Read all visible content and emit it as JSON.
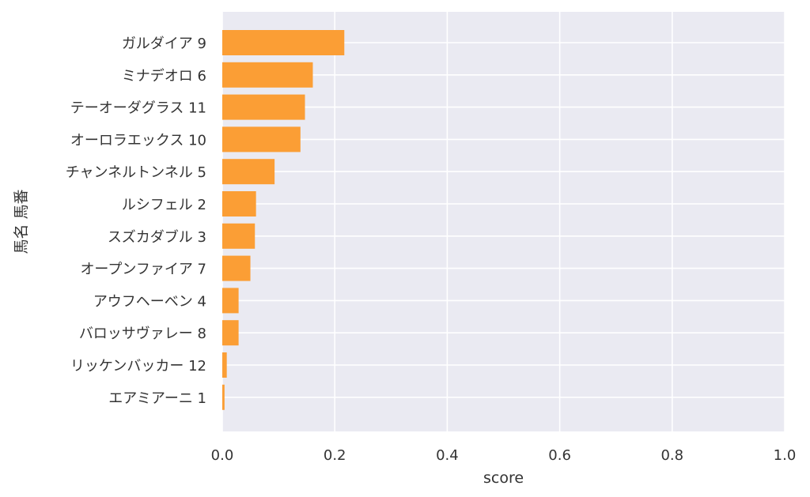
{
  "chart_data": {
    "type": "bar",
    "orientation": "horizontal",
    "xlabel": "score",
    "ylabel": "馬名 馬番",
    "xlim": [
      0,
      1
    ],
    "xticks": [
      "0.0",
      "0.2",
      "0.4",
      "0.6",
      "0.8",
      "1.0"
    ],
    "grid": true,
    "bar_color": "#fb9e35",
    "background_color": "#eaeaf2",
    "categories": [
      "ガルダイア 9",
      "ミナデオロ 6",
      "テーオーダグラス 11",
      "オーロラエックス 10",
      "チャンネルトンネル 5",
      "ルシフェル 2",
      "スズカダブル 3",
      "オープンファイア 7",
      "アウフヘーベン 4",
      "バロッサヴァレー 8",
      "リッケンバッカー 12",
      "エアミアーニ 1"
    ],
    "values": [
      0.217,
      0.161,
      0.147,
      0.139,
      0.093,
      0.06,
      0.058,
      0.05,
      0.029,
      0.029,
      0.008,
      0.004
    ]
  }
}
